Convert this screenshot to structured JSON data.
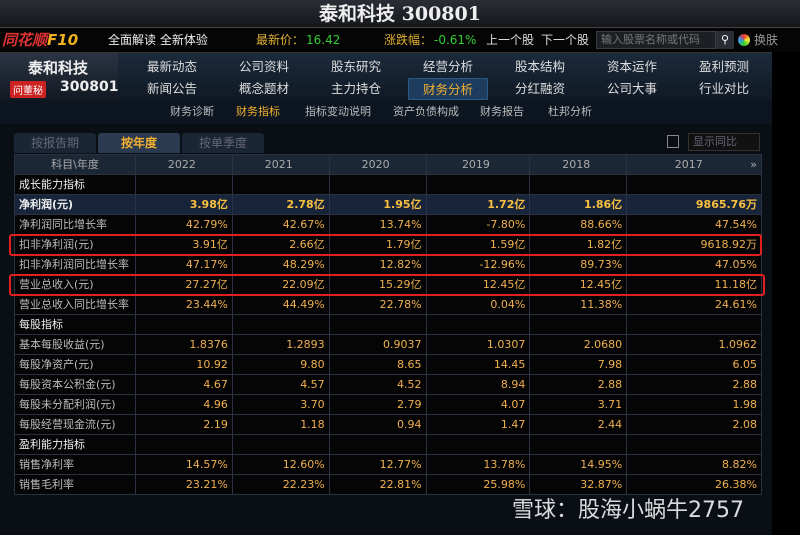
{
  "window_title": "泰和科技 300801",
  "toolbar": {
    "logo": "同花顺",
    "logo_f10": "F10",
    "slogan": "全面解读 全新体验",
    "price_label": "最新价：",
    "price": "16.42",
    "change_label": "涨跌幅：",
    "change": "-0.61%",
    "prev": "上一个股",
    "next": "下一个股",
    "search_placeholder": "输入股票名称或代码",
    "skin": "换肤"
  },
  "stock": {
    "name": "泰和科技",
    "badge": "问董秘",
    "code": "300801"
  },
  "nav": {
    "row1": [
      "最新动态",
      "公司资料",
      "股东研究",
      "经营分析",
      "股本结构",
      "资本运作",
      "盈利预测"
    ],
    "row2": [
      "新闻公告",
      "概念题材",
      "主力持仓",
      "财务分析",
      "分红融资",
      "公司大事",
      "行业对比"
    ],
    "active": "财务分析"
  },
  "subnav": {
    "items": [
      "财务诊断",
      "财务指标",
      "指标变动说明",
      "资产负债构成",
      "财务报告",
      "杜邦分析"
    ],
    "active": "财务指标"
  },
  "tabs": [
    "按报告期",
    "按年度",
    "按单季度"
  ],
  "active_tab": "按年度",
  "compare_label": "显示同比",
  "table": {
    "header": [
      "科目\\年度",
      "2022",
      "2021",
      "2020",
      "2019",
      "2018",
      "2017"
    ],
    "more": "»",
    "rows": [
      {
        "type": "sec",
        "label": "成长能力指标",
        "values": [
          "",
          "",
          "",
          "",
          "",
          ""
        ]
      },
      {
        "type": "hl",
        "label": "净利润(元)",
        "values": [
          "3.98亿",
          "2.78亿",
          "1.95亿",
          "1.72亿",
          "1.86亿",
          "9865.76万"
        ]
      },
      {
        "type": "norm",
        "label": "净利润同比增长率",
        "values": [
          "42.79%",
          "42.67%",
          "13.74%",
          "-7.80%",
          "88.66%",
          "47.54%"
        ]
      },
      {
        "type": "norm",
        "label": "扣非净利润(元)",
        "values": [
          "3.91亿",
          "2.66亿",
          "1.79亿",
          "1.59亿",
          "1.82亿",
          "9618.92万"
        ]
      },
      {
        "type": "norm",
        "label": "扣非净利润同比增长率",
        "values": [
          "47.17%",
          "48.29%",
          "12.82%",
          "-12.96%",
          "89.73%",
          "47.05%"
        ]
      },
      {
        "type": "norm",
        "label": "营业总收入(元)",
        "values": [
          "27.27亿",
          "22.09亿",
          "15.29亿",
          "12.45亿",
          "12.45亿",
          "11.18亿"
        ]
      },
      {
        "type": "norm",
        "label": "营业总收入同比增长率",
        "values": [
          "23.44%",
          "44.49%",
          "22.78%",
          "0.04%",
          "11.38%",
          "24.61%"
        ]
      },
      {
        "type": "sec",
        "label": "每股指标",
        "values": [
          "",
          "",
          "",
          "",
          "",
          ""
        ]
      },
      {
        "type": "norm",
        "label": "基本每股收益(元)",
        "values": [
          "1.8376",
          "1.2893",
          "0.9037",
          "1.0307",
          "2.0680",
          "1.0962"
        ]
      },
      {
        "type": "norm",
        "label": "每股净资产(元)",
        "values": [
          "10.92",
          "9.80",
          "8.65",
          "14.45",
          "7.98",
          "6.05"
        ]
      },
      {
        "type": "norm",
        "label": "每股资本公积金(元)",
        "values": [
          "4.67",
          "4.57",
          "4.52",
          "8.94",
          "2.88",
          "2.88"
        ]
      },
      {
        "type": "norm",
        "label": "每股未分配利润(元)",
        "values": [
          "4.96",
          "3.70",
          "2.79",
          "4.07",
          "3.71",
          "1.98"
        ]
      },
      {
        "type": "norm",
        "label": "每股经营现金流(元)",
        "values": [
          "2.19",
          "1.18",
          "0.94",
          "1.47",
          "2.44",
          "2.08"
        ]
      },
      {
        "type": "sec",
        "label": "盈利能力指标",
        "values": [
          "",
          "",
          "",
          "",
          "",
          ""
        ]
      },
      {
        "type": "norm",
        "label": "销售净利率",
        "values": [
          "14.57%",
          "12.60%",
          "12.77%",
          "13.78%",
          "14.95%",
          "8.82%"
        ]
      },
      {
        "type": "norm",
        "label": "销售毛利率",
        "values": [
          "23.21%",
          "22.23%",
          "22.81%",
          "25.98%",
          "32.87%",
          "26.38%"
        ]
      }
    ]
  },
  "watermark": "雪球：股海小蜗牛2757",
  "colors": {
    "accent": "#f0b030",
    "highlight_box": "#e02020",
    "up": "#33cc33"
  }
}
